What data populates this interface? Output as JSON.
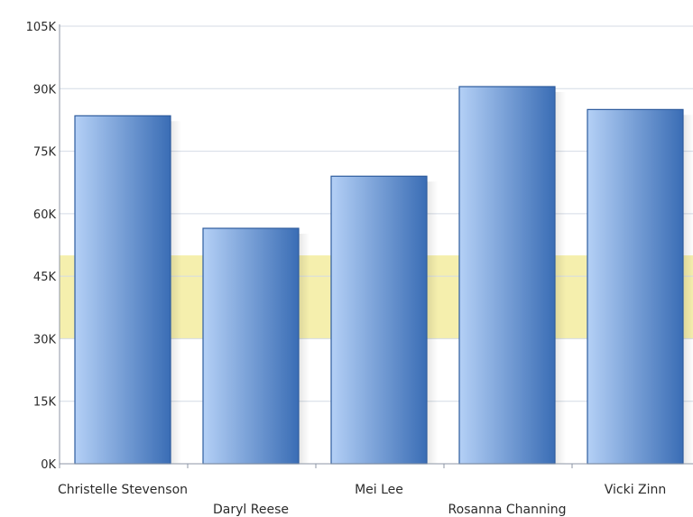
{
  "chart_data": {
    "type": "bar",
    "title": "",
    "xlabel": "",
    "ylabel": "",
    "categories": [
      "Christelle Stevenson",
      "Daryl Reese",
      "Mei Lee",
      "Rosanna Channing",
      "Vicki Zinn"
    ],
    "values": [
      83500,
      56500,
      69000,
      90500,
      85000
    ],
    "ylim": [
      0,
      105000
    ],
    "y_ticks": [
      {
        "value": 0,
        "label": "0K"
      },
      {
        "value": 15000,
        "label": "15K"
      },
      {
        "value": 30000,
        "label": "30K"
      },
      {
        "value": 45000,
        "label": "45K"
      },
      {
        "value": 60000,
        "label": "60K"
      },
      {
        "value": 75000,
        "label": "75K"
      },
      {
        "value": 90000,
        "label": "90K"
      },
      {
        "value": 105000,
        "label": "105K"
      }
    ],
    "reference_band": {
      "from": 30000,
      "to": 50000,
      "color": "#f5efad"
    },
    "grid": true,
    "legend": "none",
    "colors": {
      "bar_light": "#b4d0f6",
      "bar_dark": "#3a6db5",
      "bar_border": "#2e5c9e",
      "grid": "#d4dbe6",
      "axis": "#8c96a4"
    }
  }
}
